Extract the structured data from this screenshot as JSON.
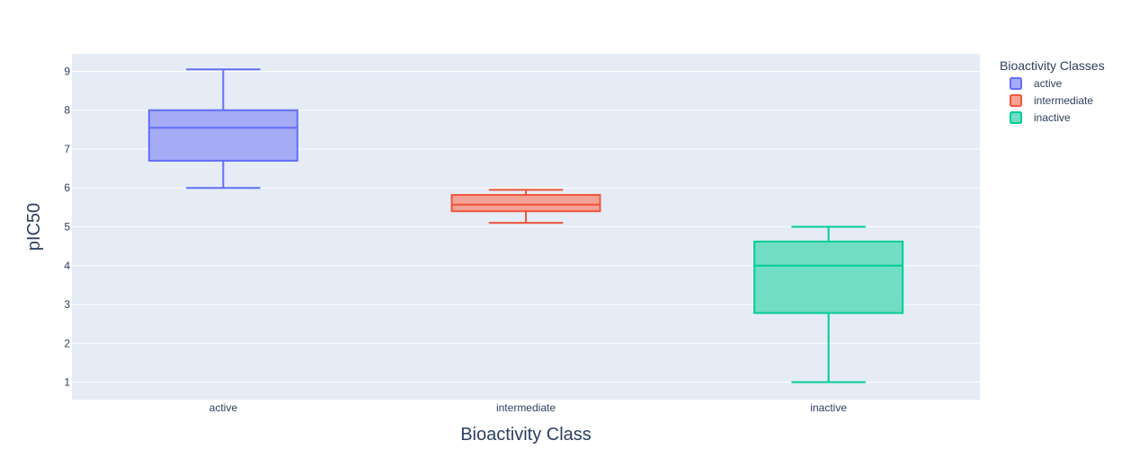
{
  "chart_data": {
    "type": "box",
    "xlabel": "Bioactivity Class",
    "ylabel": "pIC50",
    "ylim": [
      0.55,
      9.45
    ],
    "yticks": [
      1,
      2,
      3,
      4,
      5,
      6,
      7,
      8,
      9
    ],
    "categories": [
      "active",
      "intermediate",
      "inactive"
    ],
    "grid": true,
    "legend": {
      "title": "Bioactivity Classes",
      "placement": "top-right"
    },
    "series": [
      {
        "name": "active",
        "color": "#636efa",
        "fill": "#a5abf5",
        "min": 6.0,
        "q1": 6.7,
        "median": 7.55,
        "q3": 8.0,
        "max": 9.05
      },
      {
        "name": "intermediate",
        "color": "#ef553b",
        "fill": "#f3a295",
        "min": 5.1,
        "q1": 5.4,
        "median": 5.57,
        "q3": 5.82,
        "max": 5.95
      },
      {
        "name": "inactive",
        "color": "#00cc96",
        "fill": "#72ddc5",
        "min": 1.0,
        "q1": 2.78,
        "median": 4.0,
        "q3": 4.62,
        "max": 5.0
      }
    ]
  },
  "colors": {
    "plot_bg": "#e5ecf6",
    "grid": "#ffffff",
    "text": "#2a3f5f"
  }
}
